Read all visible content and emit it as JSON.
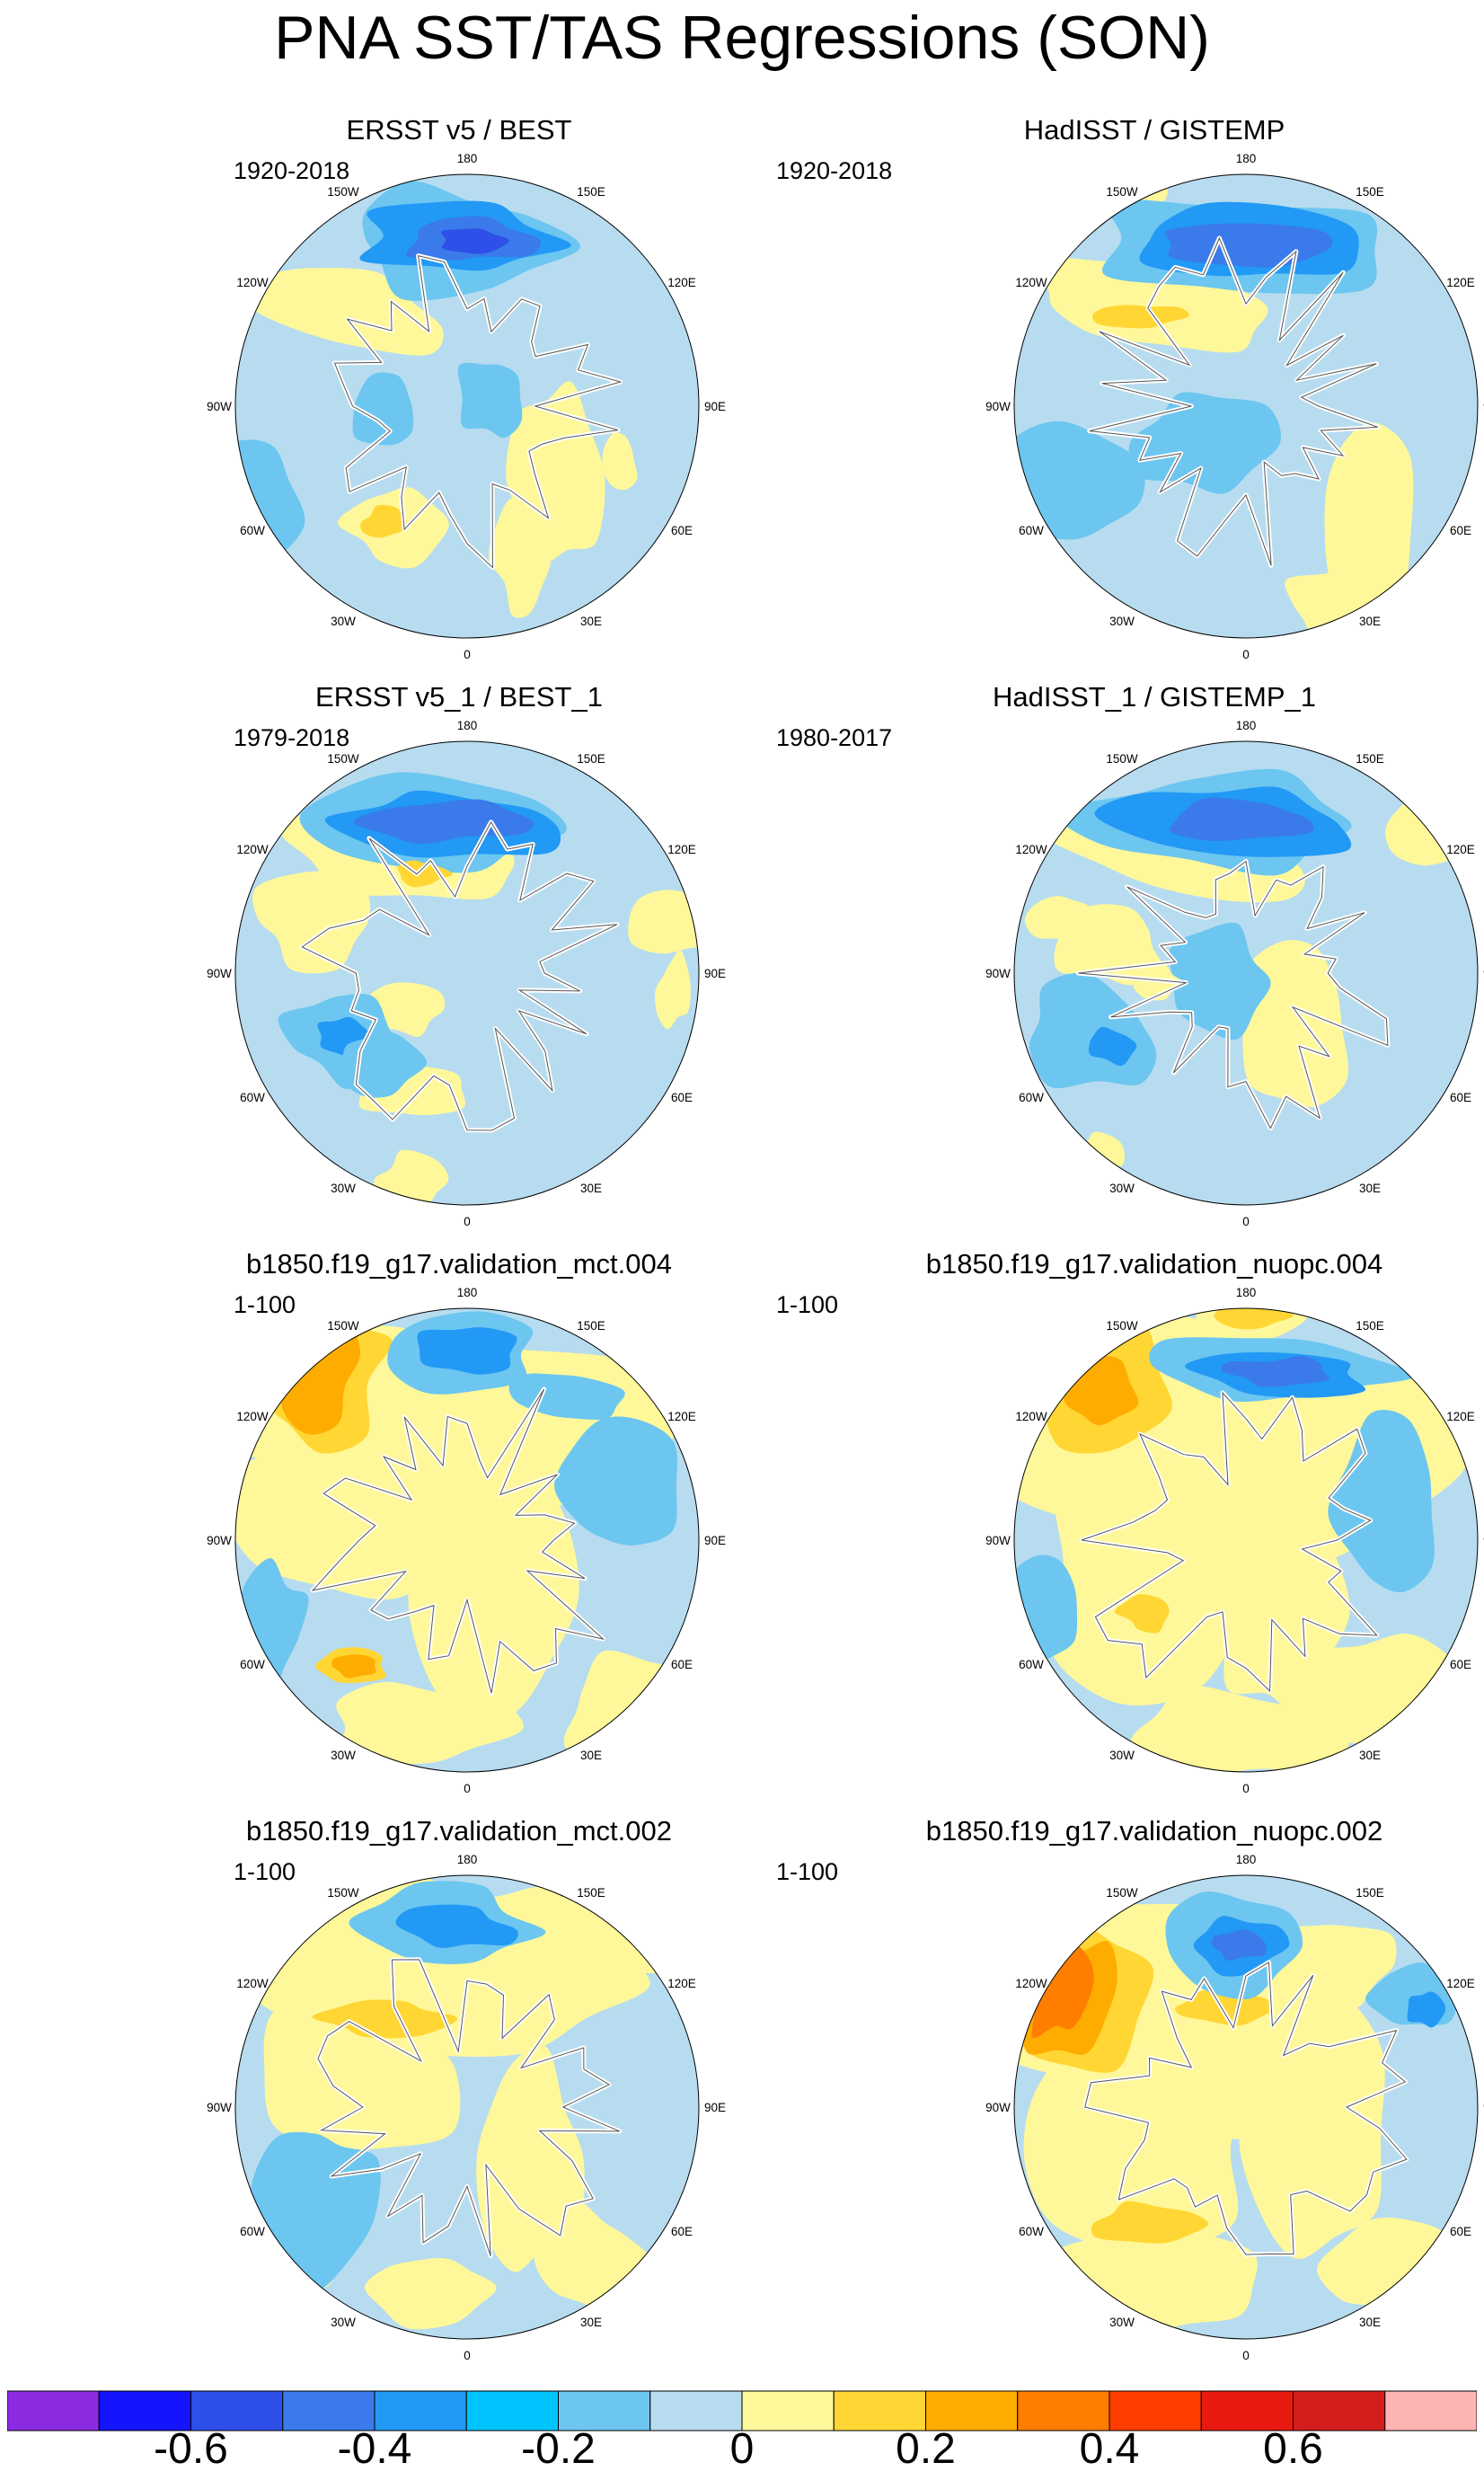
{
  "title": "PNA SST/TAS Regressions (SON)",
  "ticks": [
    "180",
    "150E",
    "120E",
    "90E",
    "60E",
    "30E",
    "0",
    "30W",
    "60W",
    "90W",
    "120W",
    "150W"
  ],
  "panels": [
    {
      "title": "ERSST v5 / BEST",
      "period": "1920-2018"
    },
    {
      "title": "HadISST / GISTEMP",
      "period": "1920-2018"
    },
    {
      "title": "ERSST v5_1 / BEST_1",
      "period": "1979-2018"
    },
    {
      "title": "HadISST_1 / GISTEMP_1",
      "period": "1980-2017"
    },
    {
      "title": "b1850.f19_g17.validation_mct.004",
      "period": "1-100"
    },
    {
      "title": "b1850.f19_g17.validation_nuopc.004",
      "period": "1-100"
    },
    {
      "title": "b1850.f19_g17.validation_mct.002",
      "period": "1-100"
    },
    {
      "title": "b1850.f19_g17.validation_nuopc.002",
      "period": "1-100"
    }
  ],
  "colorbar": {
    "colors": [
      "#8a2be2",
      "#1414ff",
      "#2e4fe8",
      "#3a7aea",
      "#2299f5",
      "#00c4ff",
      "#6cc6f0",
      "#b7dcf0",
      "#fff89a",
      "#ffd634",
      "#ffac00",
      "#ff7e00",
      "#ff3d00",
      "#e81a10",
      "#d41e1e",
      "#ffb4b4"
    ],
    "labels": [
      "-0.6",
      "-0.4",
      "-0.2",
      "0",
      "0.2",
      "0.4",
      "0.6"
    ]
  }
}
